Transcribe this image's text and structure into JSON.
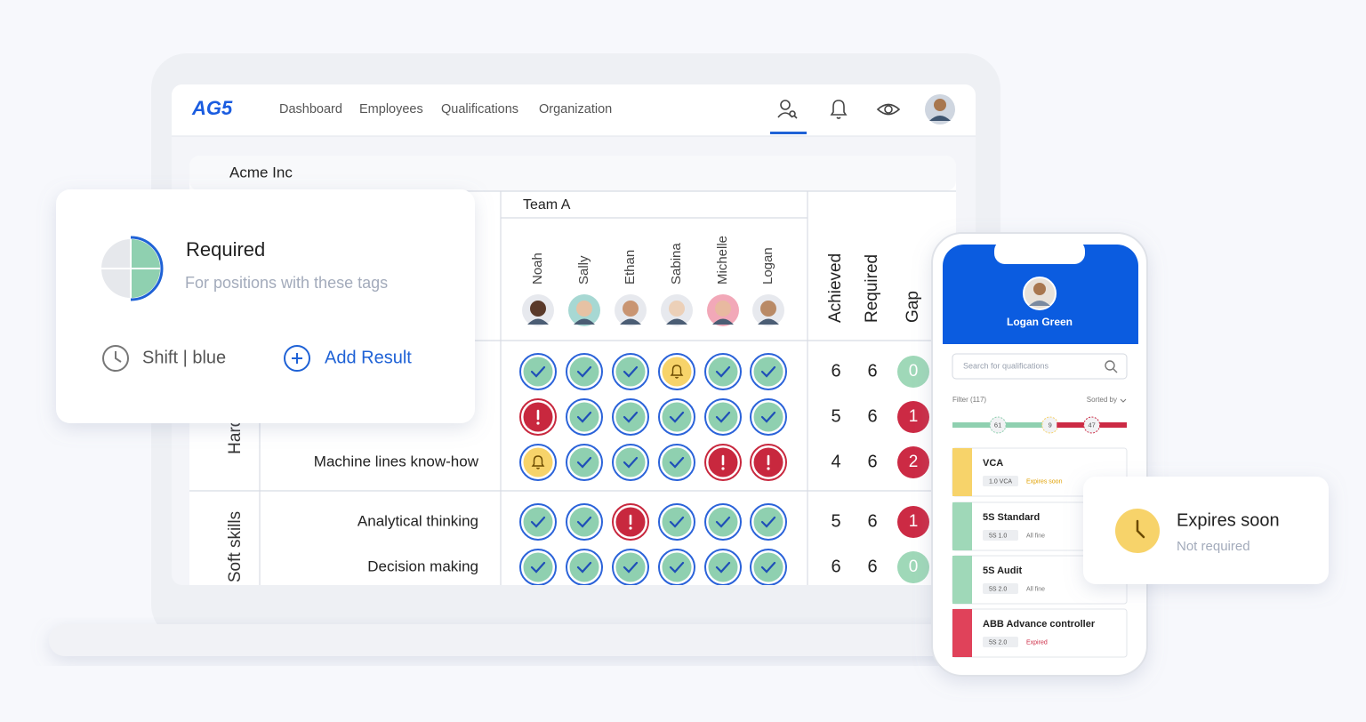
{
  "nav": {
    "logo": "AG5",
    "links": [
      "Dashboard",
      "Employees",
      "Qualifications",
      "Organization"
    ]
  },
  "company": "Acme Inc",
  "matrix": {
    "team": "Team A",
    "employees": [
      "Noah",
      "Sally",
      "Ethan",
      "Sabina",
      "Michelle",
      "Logan"
    ],
    "summary_headers": [
      "Achieved",
      "Required",
      "Gap"
    ],
    "groups": [
      {
        "name": "Hard skills",
        "rows": [
          {
            "label": null,
            "statuses": [
              "ok",
              "ok",
              "ok",
              "warn",
              "ok",
              "ok"
            ],
            "achieved": 6,
            "required": 6,
            "gap": 0
          },
          {
            "label": null,
            "statuses": [
              "error",
              "ok",
              "ok",
              "ok",
              "ok",
              "ok"
            ],
            "achieved": 5,
            "required": 6,
            "gap": 1
          },
          {
            "label": "Machine lines know-how",
            "statuses": [
              "warn",
              "ok",
              "ok",
              "ok",
              "error",
              "error"
            ],
            "achieved": 4,
            "required": 6,
            "gap": 2
          }
        ]
      },
      {
        "name": "Soft skills",
        "rows": [
          {
            "label": "Analytical thinking",
            "statuses": [
              "ok",
              "ok",
              "error",
              "ok",
              "ok",
              "ok"
            ],
            "achieved": 5,
            "required": 6,
            "gap": 1
          },
          {
            "label": "Decision making",
            "statuses": [
              "ok",
              "ok",
              "ok",
              "ok",
              "ok",
              "ok"
            ],
            "achieved": 6,
            "required": 6,
            "gap": 0
          }
        ]
      }
    ]
  },
  "card": {
    "title": "Required",
    "subtitle": "For positions with these tags",
    "tag": "Shift | blue",
    "action": "Add Result"
  },
  "phone": {
    "name": "Logan Green",
    "search_placeholder": "Search for qualifications",
    "filter": "Filter (117)",
    "sort": "Sorted by",
    "counts": [
      {
        "value": 61,
        "color": "#8fd0b0"
      },
      {
        "value": 9,
        "color": "#f7d36a"
      },
      {
        "value": 47,
        "color": "#cc2a44"
      }
    ],
    "items": [
      {
        "title": "VCA",
        "tag": "1.0 VCA",
        "status": "Expires soon",
        "color": "#f7d36a",
        "status_color": "#e0a000"
      },
      {
        "title": "5S Standard",
        "tag": "5S 1.0",
        "status": "All fine",
        "color": "#9fd8b8",
        "status_color": "#777777"
      },
      {
        "title": "5S Audit",
        "tag": "5S 2.0",
        "status": "All fine",
        "color": "#9fd8b8",
        "status_color": "#777777"
      },
      {
        "title": "ABB Advance controller",
        "tag": "5S 2.0",
        "status": "Expired",
        "color": "#e0425a",
        "status_color": "#cc2a44"
      }
    ]
  },
  "toast": {
    "title": "Expires soon",
    "subtitle": "Not required"
  }
}
